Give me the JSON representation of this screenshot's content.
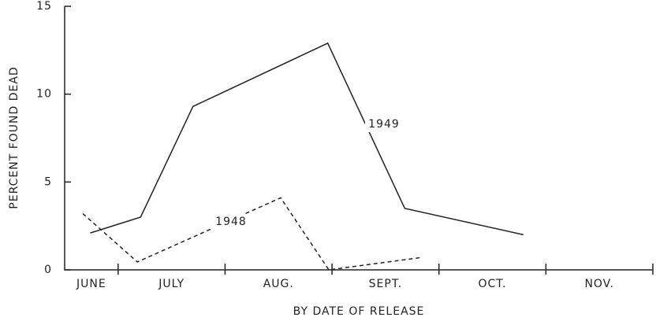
{
  "chart_data": {
    "type": "line",
    "y_label": "PERCENT FOUND DEAD",
    "x_label": "BY DATE OF RELEASE",
    "categories": [
      "JUNE",
      "JULY",
      "AUG.",
      "SEPT.",
      "OCT.",
      "NOV."
    ],
    "category_x": [
      6.75,
      7.5,
      8.5,
      9.5,
      10.5,
      11.5
    ],
    "xlim": [
      6.5,
      12
    ],
    "xticks": [
      7,
      8,
      9,
      10,
      11,
      12
    ],
    "ylim": [
      0,
      15
    ],
    "yticks": [
      0,
      5,
      10,
      15
    ],
    "series": [
      {
        "name": "1949",
        "color": "#222",
        "dash": false,
        "x": [
          6.74,
          7.21,
          7.7,
          8.96,
          9.68,
          10.79
        ],
        "values": [
          2.1,
          3.0,
          9.3,
          12.9,
          3.5,
          2.0
        ]
      },
      {
        "name": "1948",
        "color": "#222",
        "dash": true,
        "x": [
          6.67,
          7.18,
          8.52,
          8.97,
          9.83
        ],
        "values": [
          3.2,
          0.45,
          4.1,
          0,
          0.7
        ]
      }
    ]
  }
}
